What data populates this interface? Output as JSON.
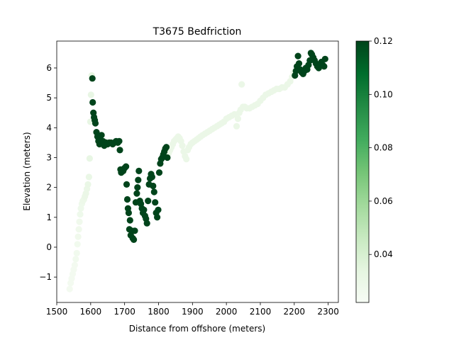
{
  "chart_data": {
    "type": "scatter",
    "title": "T3675 Bedfriction",
    "xlabel": "Distance from offshore (meters)",
    "ylabel": "Elevation (meters)",
    "xlim": [
      1500,
      2330
    ],
    "ylim": [
      -1.85,
      6.9
    ],
    "xticks": [
      1500,
      1600,
      1700,
      1800,
      1900,
      2000,
      2100,
      2200,
      2300
    ],
    "yticks": [
      -1,
      0,
      1,
      2,
      3,
      4,
      5,
      6
    ],
    "grid": false,
    "colorbar": {
      "colormap": "Greens",
      "min": 0.022,
      "max": 0.12,
      "ticks": [
        0.04,
        0.06,
        0.08,
        0.1,
        0.12
      ],
      "tick_labels": [
        "0.04",
        "0.06",
        "0.08",
        "0.10",
        "0.12"
      ],
      "colors": [
        "#f7fcf5",
        "#e5f5e0",
        "#c7e9c0",
        "#a1d99b",
        "#74c476",
        "#41ab5d",
        "#238b45",
        "#006d2c",
        "#00441b"
      ]
    },
    "points": [
      {
        "x": 1538,
        "y": -1.4,
        "c": 0.025
      },
      {
        "x": 1541,
        "y": -1.2,
        "c": 0.025
      },
      {
        "x": 1544,
        "y": -1.05,
        "c": 0.025
      },
      {
        "x": 1547,
        "y": -0.9,
        "c": 0.025
      },
      {
        "x": 1550,
        "y": -0.75,
        "c": 0.025
      },
      {
        "x": 1553,
        "y": -0.6,
        "c": 0.025
      },
      {
        "x": 1556,
        "y": -0.4,
        "c": 0.026
      },
      {
        "x": 1559,
        "y": -0.2,
        "c": 0.026
      },
      {
        "x": 1561,
        "y": 0.1,
        "c": 0.026
      },
      {
        "x": 1563,
        "y": 0.35,
        "c": 0.027
      },
      {
        "x": 1565,
        "y": 0.6,
        "c": 0.027
      },
      {
        "x": 1567,
        "y": 0.85,
        "c": 0.027
      },
      {
        "x": 1569,
        "y": 1.1,
        "c": 0.028
      },
      {
        "x": 1571,
        "y": 1.3,
        "c": 0.028
      },
      {
        "x": 1574,
        "y": 1.45,
        "c": 0.028
      },
      {
        "x": 1577,
        "y": 1.55,
        "c": 0.029
      },
      {
        "x": 1580,
        "y": 1.6,
        "c": 0.029
      },
      {
        "x": 1583,
        "y": 1.7,
        "c": 0.03
      },
      {
        "x": 1586,
        "y": 1.8,
        "c": 0.03
      },
      {
        "x": 1589,
        "y": 1.95,
        "c": 0.03
      },
      {
        "x": 1592,
        "y": 2.1,
        "c": 0.031
      },
      {
        "x": 1595,
        "y": 2.35,
        "c": 0.031
      },
      {
        "x": 1597,
        "y": 2.97,
        "c": 0.032
      },
      {
        "x": 1599,
        "y": 4.2,
        "c": 0.032
      },
      {
        "x": 1601,
        "y": 5.1,
        "c": 0.032
      },
      {
        "x": 1603,
        "y": 5.75,
        "c": 0.033
      },
      {
        "x": 1605,
        "y": 5.65,
        "c": 0.12
      },
      {
        "x": 1606,
        "y": 4.85,
        "c": 0.12
      },
      {
        "x": 1608,
        "y": 4.5,
        "c": 0.12
      },
      {
        "x": 1610,
        "y": 4.35,
        "c": 0.12
      },
      {
        "x": 1612,
        "y": 4.25,
        "c": 0.12
      },
      {
        "x": 1614,
        "y": 4.15,
        "c": 0.12
      },
      {
        "x": 1617,
        "y": 3.85,
        "c": 0.12
      },
      {
        "x": 1620,
        "y": 3.7,
        "c": 0.12
      },
      {
        "x": 1623,
        "y": 3.55,
        "c": 0.12
      },
      {
        "x": 1626,
        "y": 3.45,
        "c": 0.12
      },
      {
        "x": 1629,
        "y": 3.6,
        "c": 0.12
      },
      {
        "x": 1632,
        "y": 3.75,
        "c": 0.12
      },
      {
        "x": 1636,
        "y": 3.55,
        "c": 0.12
      },
      {
        "x": 1640,
        "y": 3.4,
        "c": 0.12
      },
      {
        "x": 1645,
        "y": 3.5,
        "c": 0.12
      },
      {
        "x": 1650,
        "y": 3.45,
        "c": 0.12
      },
      {
        "x": 1655,
        "y": 3.5,
        "c": 0.12
      },
      {
        "x": 1660,
        "y": 3.5,
        "c": 0.12
      },
      {
        "x": 1665,
        "y": 3.45,
        "c": 0.12
      },
      {
        "x": 1670,
        "y": 3.5,
        "c": 0.12
      },
      {
        "x": 1675,
        "y": 3.55,
        "c": 0.12
      },
      {
        "x": 1680,
        "y": 3.5,
        "c": 0.12
      },
      {
        "x": 1684,
        "y": 3.55,
        "c": 0.12
      },
      {
        "x": 1686,
        "y": 3.25,
        "c": 0.12
      },
      {
        "x": 1688,
        "y": 2.6,
        "c": 0.12
      },
      {
        "x": 1690,
        "y": 2.5,
        "c": 0.12
      },
      {
        "x": 1693,
        "y": 2.6,
        "c": 0.12
      },
      {
        "x": 1696,
        "y": 2.55,
        "c": 0.12
      },
      {
        "x": 1700,
        "y": 2.65,
        "c": 0.12
      },
      {
        "x": 1704,
        "y": 2.7,
        "c": 0.12
      },
      {
        "x": 1706,
        "y": 2.1,
        "c": 0.12
      },
      {
        "x": 1708,
        "y": 1.6,
        "c": 0.12
      },
      {
        "x": 1710,
        "y": 1.3,
        "c": 0.12
      },
      {
        "x": 1712,
        "y": 1.15,
        "c": 0.12
      },
      {
        "x": 1714,
        "y": 0.6,
        "c": 0.12
      },
      {
        "x": 1716,
        "y": 0.9,
        "c": 0.12
      },
      {
        "x": 1718,
        "y": 0.4,
        "c": 0.12
      },
      {
        "x": 1721,
        "y": 0.55,
        "c": 0.12
      },
      {
        "x": 1724,
        "y": 0.3,
        "c": 0.12
      },
      {
        "x": 1727,
        "y": 0.25,
        "c": 0.12
      },
      {
        "x": 1730,
        "y": 0.55,
        "c": 0.12
      },
      {
        "x": 1733,
        "y": 1.5,
        "c": 0.12
      },
      {
        "x": 1736,
        "y": 1.8,
        "c": 0.12
      },
      {
        "x": 1738,
        "y": 2.0,
        "c": 0.12
      },
      {
        "x": 1740,
        "y": 2.25,
        "c": 0.12
      },
      {
        "x": 1742,
        "y": 2.55,
        "c": 0.12
      },
      {
        "x": 1745,
        "y": 1.55,
        "c": 0.12
      },
      {
        "x": 1748,
        "y": 1.45,
        "c": 0.12
      },
      {
        "x": 1751,
        "y": 1.3,
        "c": 0.12
      },
      {
        "x": 1754,
        "y": 1.15,
        "c": 0.12
      },
      {
        "x": 1757,
        "y": 1.25,
        "c": 0.12
      },
      {
        "x": 1760,
        "y": 1.05,
        "c": 0.12
      },
      {
        "x": 1763,
        "y": 0.95,
        "c": 0.12
      },
      {
        "x": 1766,
        "y": 0.8,
        "c": 0.12
      },
      {
        "x": 1769,
        "y": 1.55,
        "c": 0.12
      },
      {
        "x": 1772,
        "y": 2.1,
        "c": 0.12
      },
      {
        "x": 1775,
        "y": 2.3,
        "c": 0.12
      },
      {
        "x": 1778,
        "y": 2.45,
        "c": 0.12
      },
      {
        "x": 1781,
        "y": 2.35,
        "c": 0.12
      },
      {
        "x": 1784,
        "y": 2.05,
        "c": 0.12
      },
      {
        "x": 1787,
        "y": 1.85,
        "c": 0.12
      },
      {
        "x": 1790,
        "y": 1.5,
        "c": 0.12
      },
      {
        "x": 1793,
        "y": 1.15,
        "c": 0.12
      },
      {
        "x": 1796,
        "y": 1.0,
        "c": 0.12
      },
      {
        "x": 1799,
        "y": 1.25,
        "c": 0.12
      },
      {
        "x": 1802,
        "y": 2.5,
        "c": 0.12
      },
      {
        "x": 1805,
        "y": 2.8,
        "c": 0.12
      },
      {
        "x": 1808,
        "y": 2.95,
        "c": 0.12
      },
      {
        "x": 1811,
        "y": 3.0,
        "c": 0.12
      },
      {
        "x": 1814,
        "y": 3.1,
        "c": 0.12
      },
      {
        "x": 1817,
        "y": 3.2,
        "c": 0.12
      },
      {
        "x": 1820,
        "y": 3.3,
        "c": 0.12
      },
      {
        "x": 1823,
        "y": 3.35,
        "c": 0.12
      },
      {
        "x": 1826,
        "y": 3.0,
        "c": 0.12
      },
      {
        "x": 1830,
        "y": 3.15,
        "c": 0.03
      },
      {
        "x": 1834,
        "y": 3.25,
        "c": 0.03
      },
      {
        "x": 1838,
        "y": 3.35,
        "c": 0.03
      },
      {
        "x": 1842,
        "y": 3.45,
        "c": 0.03
      },
      {
        "x": 1846,
        "y": 3.55,
        "c": 0.03
      },
      {
        "x": 1850,
        "y": 3.6,
        "c": 0.03
      },
      {
        "x": 1854,
        "y": 3.65,
        "c": 0.03
      },
      {
        "x": 1858,
        "y": 3.7,
        "c": 0.03
      },
      {
        "x": 1862,
        "y": 3.65,
        "c": 0.03
      },
      {
        "x": 1866,
        "y": 3.55,
        "c": 0.03
      },
      {
        "x": 1870,
        "y": 3.4,
        "c": 0.03
      },
      {
        "x": 1874,
        "y": 3.2,
        "c": 0.03
      },
      {
        "x": 1878,
        "y": 3.05,
        "c": 0.03
      },
      {
        "x": 1882,
        "y": 2.95,
        "c": 0.03
      },
      {
        "x": 1886,
        "y": 3.25,
        "c": 0.03
      },
      {
        "x": 1890,
        "y": 3.35,
        "c": 0.03
      },
      {
        "x": 1895,
        "y": 3.45,
        "c": 0.03
      },
      {
        "x": 1900,
        "y": 3.5,
        "c": 0.03
      },
      {
        "x": 1906,
        "y": 3.55,
        "c": 0.03
      },
      {
        "x": 1912,
        "y": 3.6,
        "c": 0.03
      },
      {
        "x": 1918,
        "y": 3.65,
        "c": 0.03
      },
      {
        "x": 1924,
        "y": 3.7,
        "c": 0.03
      },
      {
        "x": 1930,
        "y": 3.75,
        "c": 0.03
      },
      {
        "x": 1937,
        "y": 3.8,
        "c": 0.03
      },
      {
        "x": 1944,
        "y": 3.85,
        "c": 0.03
      },
      {
        "x": 1951,
        "y": 3.9,
        "c": 0.03
      },
      {
        "x": 1958,
        "y": 3.95,
        "c": 0.03
      },
      {
        "x": 1965,
        "y": 4.0,
        "c": 0.03
      },
      {
        "x": 1972,
        "y": 4.05,
        "c": 0.03
      },
      {
        "x": 1979,
        "y": 4.1,
        "c": 0.03
      },
      {
        "x": 1986,
        "y": 4.15,
        "c": 0.03
      },
      {
        "x": 1993,
        "y": 4.2,
        "c": 0.03
      },
      {
        "x": 2000,
        "y": 4.3,
        "c": 0.03
      },
      {
        "x": 2008,
        "y": 4.35,
        "c": 0.03
      },
      {
        "x": 2016,
        "y": 4.4,
        "c": 0.03
      },
      {
        "x": 2024,
        "y": 4.45,
        "c": 0.03
      },
      {
        "x": 2030,
        "y": 4.05,
        "c": 0.03
      },
      {
        "x": 2034,
        "y": 4.3,
        "c": 0.03
      },
      {
        "x": 2038,
        "y": 4.5,
        "c": 0.03
      },
      {
        "x": 2042,
        "y": 4.6,
        "c": 0.03
      },
      {
        "x": 2045,
        "y": 5.45,
        "c": 0.03
      },
      {
        "x": 2049,
        "y": 4.7,
        "c": 0.03
      },
      {
        "x": 2054,
        "y": 4.7,
        "c": 0.03
      },
      {
        "x": 2060,
        "y": 4.65,
        "c": 0.03
      },
      {
        "x": 2068,
        "y": 4.65,
        "c": 0.03
      },
      {
        "x": 2076,
        "y": 4.7,
        "c": 0.03
      },
      {
        "x": 2084,
        "y": 4.75,
        "c": 0.03
      },
      {
        "x": 2092,
        "y": 4.8,
        "c": 0.03
      },
      {
        "x": 2100,
        "y": 4.9,
        "c": 0.03
      },
      {
        "x": 2108,
        "y": 5.0,
        "c": 0.03
      },
      {
        "x": 2116,
        "y": 5.1,
        "c": 0.03
      },
      {
        "x": 2124,
        "y": 5.15,
        "c": 0.03
      },
      {
        "x": 2132,
        "y": 5.2,
        "c": 0.03
      },
      {
        "x": 2140,
        "y": 5.25,
        "c": 0.03
      },
      {
        "x": 2148,
        "y": 5.3,
        "c": 0.03
      },
      {
        "x": 2156,
        "y": 5.3,
        "c": 0.03
      },
      {
        "x": 2164,
        "y": 5.35,
        "c": 0.03
      },
      {
        "x": 2172,
        "y": 5.35,
        "c": 0.03
      },
      {
        "x": 2180,
        "y": 5.45,
        "c": 0.03
      },
      {
        "x": 2188,
        "y": 5.55,
        "c": 0.03
      },
      {
        "x": 2194,
        "y": 5.7,
        "c": 0.03
      },
      {
        "x": 2198,
        "y": 5.85,
        "c": 0.03
      },
      {
        "x": 2202,
        "y": 5.75,
        "c": 0.12
      },
      {
        "x": 2205,
        "y": 5.9,
        "c": 0.12
      },
      {
        "x": 2208,
        "y": 6.05,
        "c": 0.12
      },
      {
        "x": 2211,
        "y": 6.4,
        "c": 0.12
      },
      {
        "x": 2214,
        "y": 6.15,
        "c": 0.12
      },
      {
        "x": 2218,
        "y": 5.95,
        "c": 0.12
      },
      {
        "x": 2222,
        "y": 5.85,
        "c": 0.12
      },
      {
        "x": 2226,
        "y": 5.8,
        "c": 0.12
      },
      {
        "x": 2230,
        "y": 5.9,
        "c": 0.12
      },
      {
        "x": 2234,
        "y": 6.0,
        "c": 0.12
      },
      {
        "x": 2238,
        "y": 5.95,
        "c": 0.12
      },
      {
        "x": 2242,
        "y": 6.1,
        "c": 0.12
      },
      {
        "x": 2246,
        "y": 6.25,
        "c": 0.12
      },
      {
        "x": 2249,
        "y": 6.5,
        "c": 0.12
      },
      {
        "x": 2252,
        "y": 6.45,
        "c": 0.12
      },
      {
        "x": 2256,
        "y": 6.35,
        "c": 0.12
      },
      {
        "x": 2260,
        "y": 6.25,
        "c": 0.12
      },
      {
        "x": 2264,
        "y": 6.15,
        "c": 0.12
      },
      {
        "x": 2268,
        "y": 6.05,
        "c": 0.12
      },
      {
        "x": 2272,
        "y": 6.0,
        "c": 0.12
      },
      {
        "x": 2276,
        "y": 6.1,
        "c": 0.12
      },
      {
        "x": 2280,
        "y": 6.2,
        "c": 0.12
      },
      {
        "x": 2284,
        "y": 6.1,
        "c": 0.12
      },
      {
        "x": 2288,
        "y": 6.05,
        "c": 0.12
      },
      {
        "x": 2291,
        "y": 6.3,
        "c": 0.12
      }
    ]
  }
}
